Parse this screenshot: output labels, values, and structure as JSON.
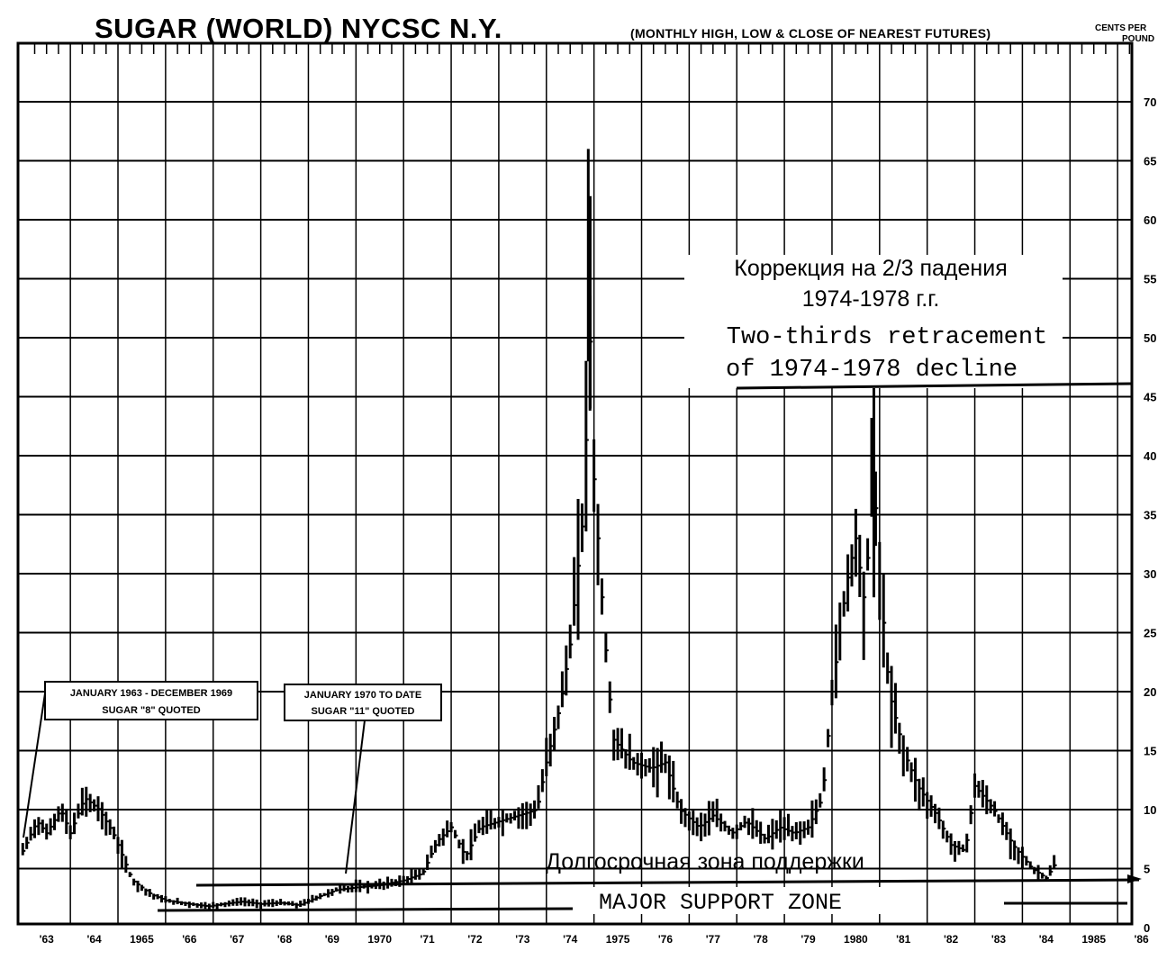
{
  "chart_data": {
    "type": "bar",
    "subtype": "monthly high-low-close price bars",
    "title": "SUGAR (WORLD)  NYCSC  N.Y.",
    "subtitle": "(MONTHLY HIGH, LOW & CLOSE OF NEAREST FUTURES)",
    "unit_line1": "CENTS PER",
    "unit_line2": "POUND",
    "ylim": [
      0,
      75
    ],
    "y_ticks": [
      "70",
      "65",
      "60",
      "55",
      "50",
      "45",
      "40",
      "35",
      "30",
      "25",
      "20",
      "15",
      "10",
      "5",
      "0"
    ],
    "x_ticks": [
      "'63",
      "'64",
      "1965",
      "'66",
      "'67",
      "'68",
      "'69",
      "1970",
      "'71",
      "'72",
      "'73",
      "'74",
      "1975",
      "'76",
      "'77",
      "'78",
      "'79",
      "1980",
      "'81",
      "'82",
      "'83",
      "'84",
      "1985",
      "'86"
    ],
    "grid": true,
    "annotation_boxes": [
      {
        "line1": "JANUARY 1963 - DECEMBER 1969",
        "line2": "SUGAR \"8\" QUOTED"
      },
      {
        "line1": "JANUARY 1970 TO DATE",
        "line2": "SUGAR \"11\" QUOTED"
      }
    ],
    "annotations": {
      "retracement_ru_line1": "Коррекция на 2/3 падения",
      "retracement_ru_line2": "1974-1978 г.г.",
      "retracement_en_line1": "Two-thirds retracement",
      "retracement_en_line2": "of 1974-1978 decline",
      "support_ru": "Долгосрочная зона поддержки",
      "support_en": "MAJOR SUPPORT ZONE"
    },
    "retracement_level": 46,
    "support_level": 4,
    "close_anchors": [
      [
        1963.0,
        6.5
      ],
      [
        1963.3,
        9
      ],
      [
        1963.5,
        8
      ],
      [
        1963.8,
        10
      ],
      [
        1964.0,
        8
      ],
      [
        1964.3,
        11
      ],
      [
        1964.6,
        10
      ],
      [
        1964.9,
        8
      ],
      [
        1965.3,
        4
      ],
      [
        1965.7,
        2.8
      ],
      [
        1966.0,
        2.3
      ],
      [
        1966.5,
        2
      ],
      [
        1966.9,
        1.8
      ],
      [
        1967.2,
        2.0
      ],
      [
        1967.6,
        2.2
      ],
      [
        1968.0,
        2.0
      ],
      [
        1968.4,
        2.1
      ],
      [
        1968.8,
        1.9
      ],
      [
        1969.2,
        2.6
      ],
      [
        1969.6,
        3.2
      ],
      [
        1970.0,
        3.4
      ],
      [
        1970.5,
        3.6
      ],
      [
        1971.0,
        4.0
      ],
      [
        1971.4,
        4.6
      ],
      [
        1971.7,
        7.3
      ],
      [
        1972.0,
        8.5
      ],
      [
        1972.3,
        6.0
      ],
      [
        1972.6,
        8.5
      ],
      [
        1973.0,
        9.0
      ],
      [
        1973.4,
        9.5
      ],
      [
        1973.8,
        10.0
      ],
      [
        1974.0,
        14.0
      ],
      [
        1974.3,
        19.0
      ],
      [
        1974.5,
        24.0
      ],
      [
        1974.8,
        36.0
      ],
      [
        1974.9,
        52.0
      ],
      [
        1975.0,
        38.0
      ],
      [
        1975.2,
        26.0
      ],
      [
        1975.4,
        16.0
      ],
      [
        1975.8,
        14.0
      ],
      [
        1976.2,
        13.5
      ],
      [
        1976.5,
        14.0
      ],
      [
        1976.8,
        10.0
      ],
      [
        1977.2,
        8.5
      ],
      [
        1977.5,
        9.5
      ],
      [
        1977.9,
        8.0
      ],
      [
        1978.2,
        9.0
      ],
      [
        1978.6,
        7.5
      ],
      [
        1978.9,
        8.5
      ],
      [
        1979.2,
        8.0
      ],
      [
        1979.5,
        8.5
      ],
      [
        1979.8,
        11.0
      ],
      [
        1980.0,
        20.0
      ],
      [
        1980.3,
        29.0
      ],
      [
        1980.5,
        33.0
      ],
      [
        1980.7,
        27.0
      ],
      [
        1980.85,
        40.0
      ],
      [
        1981.0,
        30.0
      ],
      [
        1981.2,
        20.0
      ],
      [
        1981.5,
        15.0
      ],
      [
        1981.8,
        12.0
      ],
      [
        1982.2,
        9.5
      ],
      [
        1982.5,
        7.0
      ],
      [
        1982.8,
        6.5
      ],
      [
        1983.0,
        12.0
      ],
      [
        1983.4,
        10.0
      ],
      [
        1983.8,
        7.0
      ],
      [
        1984.2,
        5.0
      ],
      [
        1984.5,
        4.2
      ],
      [
        1984.7,
        5.5
      ]
    ]
  }
}
